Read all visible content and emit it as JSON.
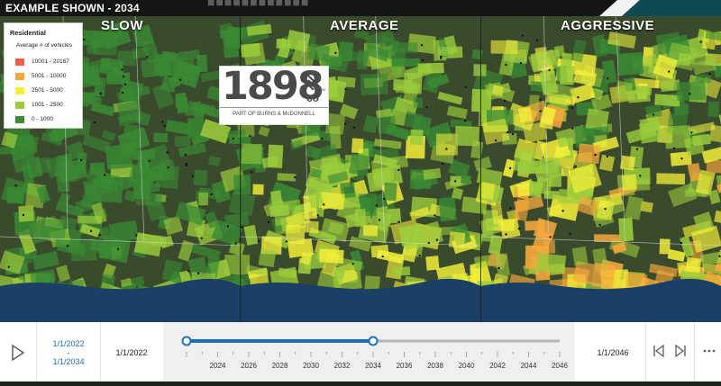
{
  "header": {
    "title": "EXAMPLE SHOWN - 2034"
  },
  "panels": [
    {
      "title": "SLOW",
      "level": "slow"
    },
    {
      "title": "AVERAGE",
      "level": "average"
    },
    {
      "title": "AGGRESSIVE",
      "level": "aggressive"
    }
  ],
  "legend": {
    "title": "Residential",
    "subtitle": "Average # of vehicles",
    "items": [
      {
        "label": "10001 - 20167",
        "color": "#f0604a"
      },
      {
        "label": "5001 - 10000",
        "color": "#f5a93c"
      },
      {
        "label": "2501 - 5000",
        "color": "#f3ef3a"
      },
      {
        "label": "1001 - 2500",
        "color": "#9ccc3c"
      },
      {
        "label": "0 - 1000",
        "color": "#3a8a34"
      }
    ]
  },
  "logo": {
    "number": "1898",
    "suffix": "co",
    "tm": "SM",
    "tagline": "PART OF BURNS & McDONNELL"
  },
  "timeline": {
    "range_start": "1/1/2022",
    "range_separator": "-",
    "range_end": "1/1/2034",
    "start_date": "1/1/2022",
    "end_date": "1/1/2046",
    "min_year": 2022,
    "max_year": 2046,
    "selected_start_year": 2022,
    "selected_end_year": 2034,
    "tick_labels": [
      "2024",
      "2026",
      "2028",
      "2030",
      "2032",
      "2034",
      "2036",
      "2038",
      "2040",
      "2042",
      "2044",
      "2046"
    ]
  },
  "icons": {
    "play": "play-icon",
    "previous": "previous-icon",
    "next": "next-icon",
    "more": "more-icon"
  },
  "colors": {
    "accent": "#1a6fb8",
    "water": "#1c3f66",
    "land": "#3a4a2c"
  }
}
